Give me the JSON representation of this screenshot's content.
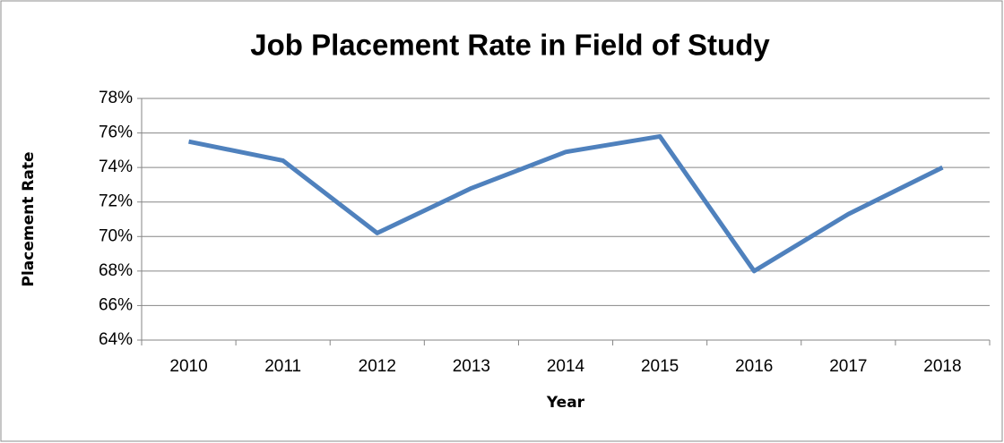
{
  "chart_data": {
    "type": "line",
    "title": "Job Placement Rate in Field of Study",
    "x_label": "Year",
    "y_label": "Placement Rate",
    "categories": [
      "2010",
      "2011",
      "2012",
      "2013",
      "2014",
      "2015",
      "2016",
      "2017",
      "2018"
    ],
    "values": [
      75.5,
      74.4,
      70.2,
      72.8,
      74.9,
      75.8,
      68.0,
      71.3,
      74.0
    ],
    "color": "#4f81bd",
    "ylim": [
      64,
      78
    ],
    "yticks": [
      {
        "value": 64,
        "label": "64%"
      },
      {
        "value": 66,
        "label": "66%"
      },
      {
        "value": 68,
        "label": "68%"
      },
      {
        "value": 70,
        "label": "70%"
      },
      {
        "value": 72,
        "label": "72%"
      },
      {
        "value": 74,
        "label": "74%"
      },
      {
        "value": 76,
        "label": "76%"
      },
      {
        "value": 78,
        "label": "78%"
      }
    ],
    "grid": true
  }
}
